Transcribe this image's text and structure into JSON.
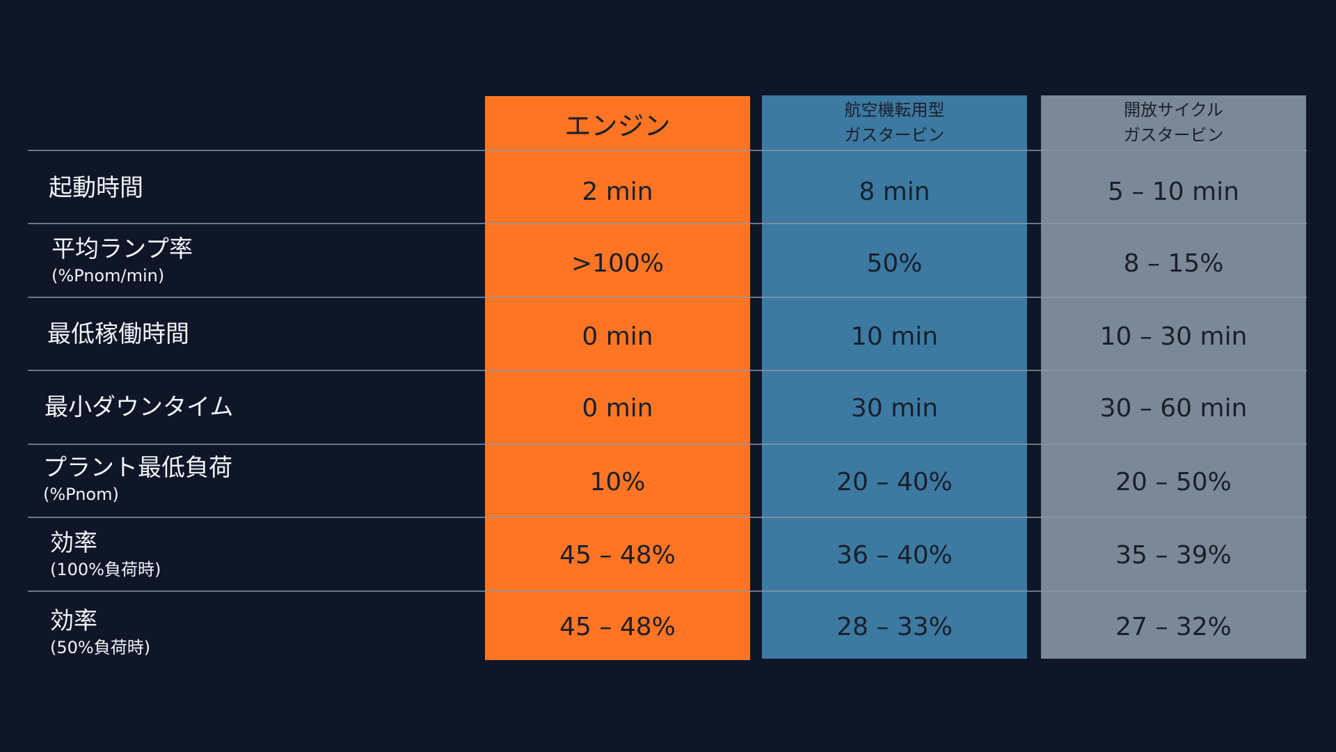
{
  "columns": [
    {
      "header_lines": [
        "エンジン"
      ]
    },
    {
      "header_lines": [
        "航空機転用型",
        "ガスタービン"
      ]
    },
    {
      "header_lines": [
        "開放サイクル",
        "ガスタービン"
      ]
    }
  ],
  "rows": [
    {
      "label": "起動時間",
      "sublabel": "",
      "values": [
        "2 min",
        "8 min",
        "5 – 10 min"
      ]
    },
    {
      "label": "平均ランプ率",
      "sublabel": "(%Pnom/min)",
      "values": [
        ">100%",
        "50%",
        "8 – 15%"
      ]
    },
    {
      "label": "最低稼働時間",
      "sublabel": "",
      "values": [
        "0 min",
        "10 min",
        "10 – 30 min"
      ]
    },
    {
      "label": "最小ダウンタイム",
      "sublabel": "",
      "values": [
        "0 min",
        "30 min",
        "30 – 60 min"
      ]
    },
    {
      "label": "プラント最低負荷",
      "sublabel": "(%Pnom)",
      "values": [
        "10%",
        "20 – 40%",
        "20 – 50%"
      ]
    },
    {
      "label": "効率",
      "sublabel": "(100%負荷時)",
      "values": [
        "45 – 48%",
        "36 – 40%",
        "35 – 39%"
      ]
    },
    {
      "label": "効率",
      "sublabel": "(50%負荷時)",
      "values": [
        "45 – 48%",
        "28 – 33%",
        "27 – 32%"
      ]
    }
  ],
  "colors": {
    "background": "#0e1628",
    "engine": "#ff7524",
    "aero_gas_turbine": "#3d7aa1",
    "open_cycle_gas_turbine": "#7b8897",
    "divider": "#8c97a6"
  }
}
